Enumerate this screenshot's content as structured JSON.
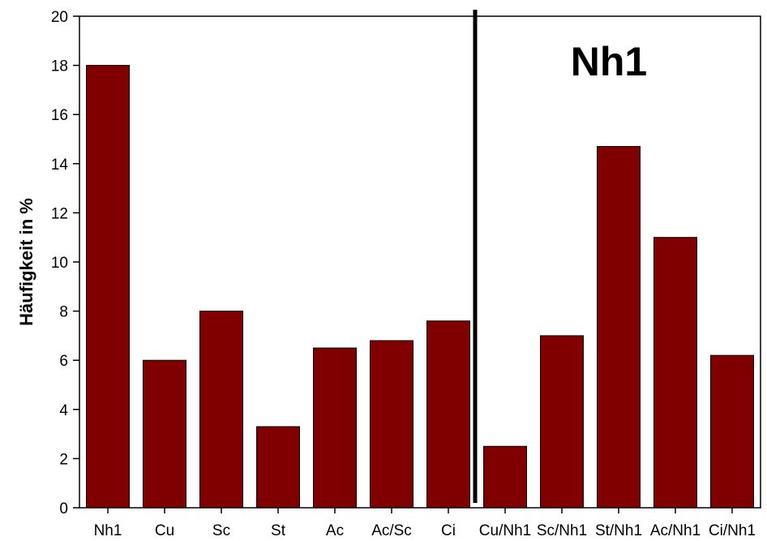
{
  "chart_data": {
    "type": "bar",
    "ylabel": "Häufigkeit in  %",
    "xlabel": "",
    "ylim": [
      0,
      20
    ],
    "yticks": [
      0,
      2,
      4,
      6,
      8,
      10,
      12,
      14,
      16,
      18,
      20
    ],
    "categories": [
      "Nh1",
      "Cu",
      "Sc",
      "St",
      "Ac",
      "Ac/Sc",
      "Ci",
      "Cu/Nh1",
      "Sc/Nh1",
      "St/Nh1",
      "Ac/Nh1",
      "Ci/Nh1"
    ],
    "values": [
      18,
      6,
      8,
      3.3,
      6.5,
      6.8,
      7.6,
      2.5,
      7,
      14.7,
      11,
      6.2
    ],
    "bar_color": "#800000",
    "annotation": "Nh1",
    "divider_after_category": "Ci",
    "grid": false
  }
}
